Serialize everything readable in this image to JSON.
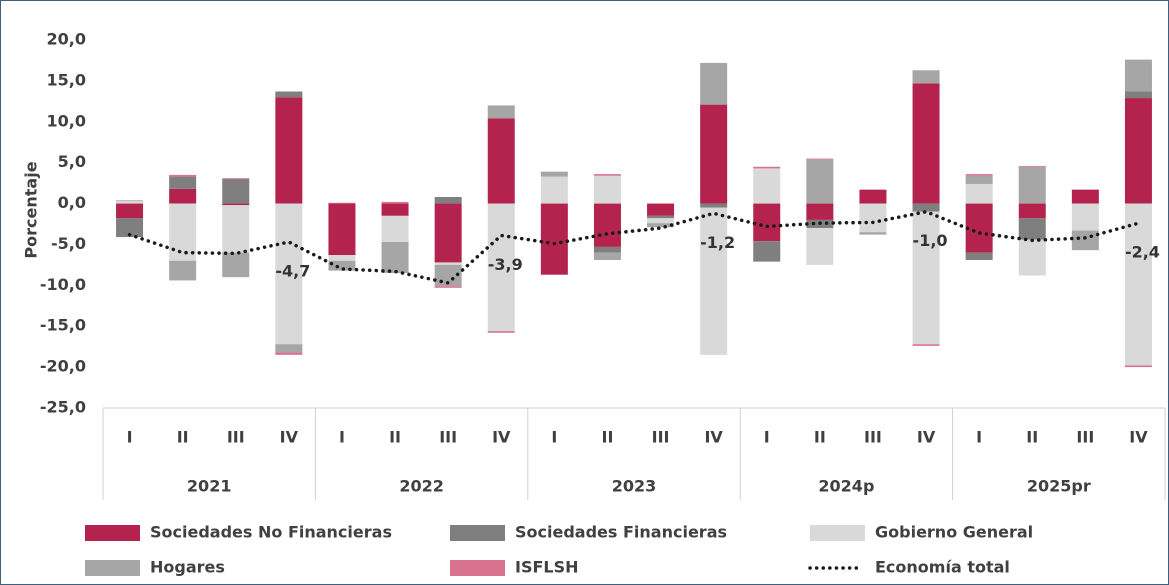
{
  "chart_data": {
    "type": "bar",
    "stacked": true,
    "y_label": "Porcentaje",
    "categories": [
      "I",
      "II",
      "III",
      "IV",
      "I",
      "II",
      "III",
      "IV",
      "I",
      "II",
      "III",
      "IV",
      "I",
      "II",
      "III",
      "IV",
      "I",
      "II",
      "III",
      "IV"
    ],
    "groups": [
      "2021",
      "2022",
      "2023",
      "2024p",
      "2025pr"
    ],
    "ylim": [
      -25,
      20
    ],
    "yticks": [
      {
        "value": 20,
        "label": "20,0"
      },
      {
        "value": 15,
        "label": "15,0"
      },
      {
        "value": 10,
        "label": "10,0"
      },
      {
        "value": 5,
        "label": "5,0"
      },
      {
        "value": 0,
        "label": "0,0"
      },
      {
        "value": -5,
        "label": "-5,0"
      },
      {
        "value": -10,
        "label": "-10,0"
      },
      {
        "value": -15,
        "label": "-15,0"
      },
      {
        "value": -20,
        "label": "-20,0"
      },
      {
        "value": -25,
        "label": "-25,0"
      }
    ],
    "series": [
      {
        "name": "Sociedades No Financieras",
        "color": "#b3234d",
        "values": [
          -1.8,
          1.8,
          -0.2,
          13.0,
          -6.3,
          -1.5,
          -7.2,
          10.4,
          -8.7,
          -5.3,
          -1.5,
          12.1,
          -4.6,
          -2.0,
          1.7,
          14.7,
          -6.0,
          -1.8,
          1.7,
          12.9
        ]
      },
      {
        "name": "Sociedades Financieras",
        "color": "#7f7f7f",
        "values": [
          -2.3,
          1.5,
          3.0,
          0.7,
          0,
          0,
          0.8,
          0,
          0,
          -0.7,
          -0.3,
          -0.5,
          -2.5,
          -1.0,
          0,
          -1.0,
          -0.9,
          -2.6,
          0,
          0.8
        ]
      },
      {
        "name": "Gobierno General",
        "color": "#d9d9d9",
        "values": [
          0.3,
          -7.0,
          -5.8,
          -17.2,
          -0.7,
          -3.2,
          -0.3,
          -15.6,
          3.3,
          3.4,
          -0.6,
          -18.0,
          4.3,
          -4.5,
          -3.5,
          -16.2,
          2.4,
          -4.4,
          -3.3,
          -19.8
        ]
      },
      {
        "name": "Hogares",
        "color": "#a6a6a6",
        "values": [
          0.1,
          -2.4,
          -3.0,
          -1.0,
          -1.2,
          -3.8,
          -2.6,
          1.6,
          0.6,
          -0.9,
          -0.5,
          5.1,
          0,
          5.4,
          -0.3,
          1.6,
          1.0,
          4.5,
          -2.4,
          3.9
        ]
      },
      {
        "name": "ISFLSH",
        "color": "#d9728f",
        "values": [
          0,
          0.2,
          0.1,
          -0.3,
          0.1,
          0.2,
          -0.2,
          -0.2,
          0,
          0.2,
          0,
          0,
          0.2,
          0.1,
          0,
          -0.2,
          0.2,
          0.1,
          0,
          -0.2
        ]
      },
      {
        "name": "Economía total",
        "type": "line",
        "color": "#1a1a1a",
        "values": [
          -3.8,
          -6.0,
          -6.1,
          -4.7,
          -8.0,
          -8.3,
          -9.7,
          -3.9,
          -4.9,
          -3.7,
          -3.0,
          -1.2,
          -2.8,
          -2.4,
          -2.3,
          -1.0,
          -3.6,
          -4.5,
          -4.2,
          -2.4
        ],
        "value_labels": [
          null,
          null,
          null,
          "-4,7",
          null,
          null,
          null,
          "-3,9",
          null,
          null,
          null,
          "-1,2",
          null,
          null,
          null,
          "-1,0",
          null,
          null,
          null,
          "-2,4"
        ]
      }
    ]
  }
}
